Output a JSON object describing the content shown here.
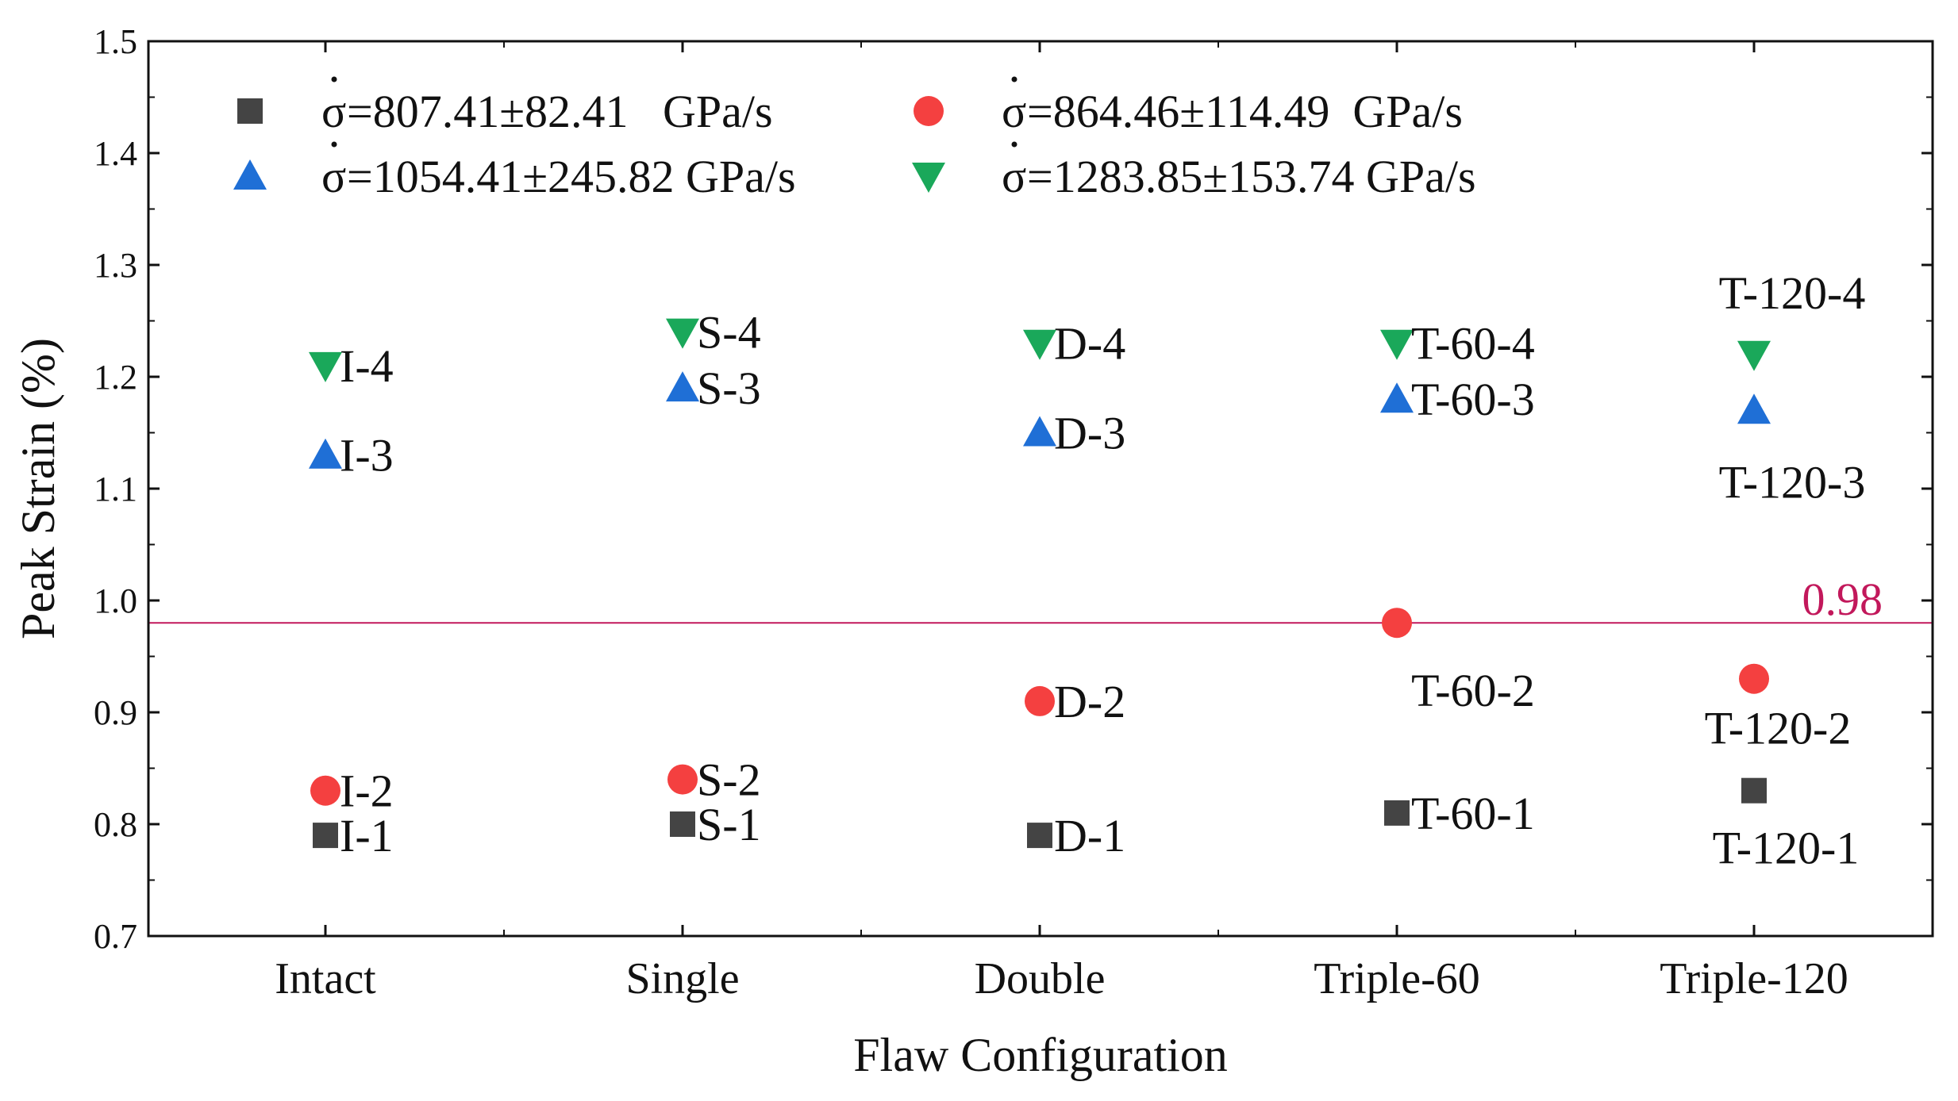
{
  "chart_data": {
    "type": "scatter",
    "xlabel": "Flaw Configuration",
    "ylabel": "Peak Strain (%)",
    "ylim": [
      0.7,
      1.5
    ],
    "yticks": [
      "0.7",
      "0.8",
      "0.9",
      "1.0",
      "1.1",
      "1.2",
      "1.3",
      "1.4",
      "1.5"
    ],
    "categories": [
      "Intact",
      "Single",
      "Double",
      "Triple-60",
      "Triple-120"
    ],
    "reference_line": {
      "value": 0.98,
      "label": "0.98",
      "color": "#c2185b"
    },
    "legend": {
      "position": "top"
    },
    "rate_symbol": "σ",
    "series": [
      {
        "name": "=807.41±82.41   GPa/s",
        "marker": "square",
        "color": "#444444",
        "values": [
          0.79,
          0.8,
          0.79,
          0.81,
          0.83
        ],
        "point_labels": [
          "I-1",
          "S-1",
          "D-1",
          "T-60-1",
          "T-120-1"
        ]
      },
      {
        "name": "=864.46±114.49  GPa/s",
        "marker": "circle",
        "color": "#f44040",
        "values": [
          0.83,
          0.84,
          0.91,
          0.98,
          0.93
        ],
        "point_labels": [
          "I-2",
          "S-2",
          "D-2",
          "T-60-2",
          "T-120-2"
        ]
      },
      {
        "name": "=1054.41±245.82 GPa/s",
        "marker": "triangle-up",
        "color": "#1f6fd6",
        "values": [
          1.13,
          1.19,
          1.15,
          1.18,
          1.17
        ],
        "point_labels": [
          "I-3",
          "S-3",
          "D-3",
          "T-60-3",
          "T-120-3"
        ]
      },
      {
        "name": "=1283.85±153.74 GPa/s",
        "marker": "triangle-down",
        "color": "#1aa85a",
        "values": [
          1.21,
          1.24,
          1.23,
          1.23,
          1.22
        ],
        "point_labels": [
          "I-4",
          "S-4",
          "D-4",
          "T-60-4",
          "T-120-4"
        ]
      }
    ]
  }
}
